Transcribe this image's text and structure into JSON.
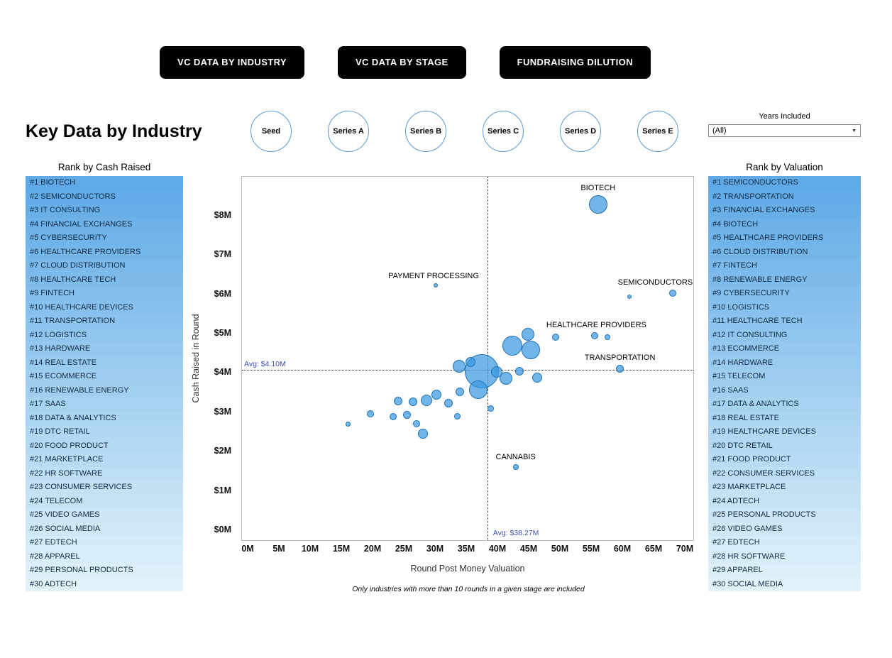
{
  "nav": {
    "buttons": [
      "VC DATA BY INDUSTRY",
      "VC DATA BY STAGE",
      "FUNDRAISING DILUTION"
    ]
  },
  "header": {
    "title": "Key Data by Industry",
    "stages": [
      "Seed",
      "Series A",
      "Series B",
      "Series C",
      "Series D",
      "Series E"
    ],
    "years_filter": {
      "label": "Years Included",
      "value": "(All)"
    }
  },
  "left_panel": {
    "title": "Rank by Cash Raised",
    "items": [
      "#1 BIOTECH",
      "#2 SEMICONDUCTORS",
      "#3 IT CONSULTING",
      "#4 FINANCIAL EXCHANGES",
      "#5 CYBERSECURITY",
      "#6 HEALTHCARE PROVIDERS",
      "#7 CLOUD DISTRIBUTION",
      "#8 HEALTHCARE TECH",
      "#9 FINTECH",
      "#10 HEALTHCARE DEVICES",
      "#11 TRANSPORTATION",
      "#12 LOGISTICS",
      "#13 HARDWARE",
      "#14 REAL ESTATE",
      "#15 ECOMMERCE",
      "#16 RENEWABLE ENERGY",
      "#17 SAAS",
      "#18 DATA & ANALYTICS",
      "#19 DTC RETAIL",
      "#20 FOOD PRODUCT",
      "#21 MARKETPLACE",
      "#22 HR SOFTWARE",
      "#23 CONSUMER SERVICES",
      "#24 TELECOM",
      "#25 VIDEO GAMES",
      "#26 SOCIAL MEDIA",
      "#27 EDTECH",
      "#28 APPAREL",
      "#29 PERSONAL PRODUCTS",
      "#30 ADTECH"
    ]
  },
  "right_panel": {
    "title": "Rank by Valuation",
    "items": [
      "#1 SEMICONDUCTORS",
      "#2 TRANSPORTATION",
      "#3 FINANCIAL EXCHANGES",
      "#4 BIOTECH",
      "#5 HEALTHCARE PROVIDERS",
      "#6 CLOUD DISTRIBUTION",
      "#7 FINTECH",
      "#8 RENEWABLE ENERGY",
      "#9 CYBERSECURITY",
      "#10 LOGISTICS",
      "#11 HEALTHCARE TECH",
      "#12 IT CONSULTING",
      "#13 ECOMMERCE",
      "#14 HARDWARE",
      "#15 TELECOM",
      "#16 SAAS",
      "#17 DATA & ANALYTICS",
      "#18 REAL ESTATE",
      "#19 HEALTHCARE DEVICES",
      "#20 DTC RETAIL",
      "#21 FOOD PRODUCT",
      "#22 CONSUMER SERVICES",
      "#23 MARKETPLACE",
      "#24 ADTECH",
      "#25 PERSONAL PRODUCTS",
      "#26 VIDEO GAMES",
      "#27 EDTECH",
      "#28 HR SOFTWARE",
      "#29 APPAREL",
      "#30 SOCIAL MEDIA"
    ]
  },
  "rank_palette": [
    "#5FAAE6",
    "#63ACE7",
    "#68AFE7",
    "#6CB1E8",
    "#71B4E9",
    "#75B6E9",
    "#7AB9EA",
    "#7EBBEB",
    "#83BEEC",
    "#87C0EC",
    "#8CC3ED",
    "#90C5EE",
    "#95C8EE",
    "#99CAEF",
    "#9ECDF0",
    "#A2CFF0",
    "#A7D2F1",
    "#ABD4F2",
    "#B0D7F3",
    "#B4D9F3",
    "#B9DCF4",
    "#BDDEF5",
    "#C2E1F5",
    "#C6E3F6",
    "#CBE6F7",
    "#CFE8F7",
    "#D4EBF8",
    "#D8EDF9",
    "#DDF0FA",
    "#E1F2FA"
  ],
  "chart_data": {
    "type": "scatter",
    "title": "",
    "xlabel": "Round Post Money Valuation",
    "ylabel": "Cash Raised in Round",
    "footnote": "Only industries with more than 10 rounds in a given stage are included",
    "units": "millions USD",
    "xlim": [
      0,
      71.5
    ],
    "ylim": [
      0,
      9
    ],
    "grid": false,
    "x_ticks": [
      {
        "value": 0,
        "label": "0M"
      },
      {
        "value": 5,
        "label": "5M"
      },
      {
        "value": 10,
        "label": "10M"
      },
      {
        "value": 15,
        "label": "15M"
      },
      {
        "value": 20,
        "label": "20M"
      },
      {
        "value": 25,
        "label": "25M"
      },
      {
        "value": 30,
        "label": "30M"
      },
      {
        "value": 35,
        "label": "35M"
      },
      {
        "value": 40,
        "label": "40M"
      },
      {
        "value": 45,
        "label": "45M"
      },
      {
        "value": 50,
        "label": "50M"
      },
      {
        "value": 55,
        "label": "55M"
      },
      {
        "value": 60,
        "label": "60M"
      },
      {
        "value": 65,
        "label": "65M"
      },
      {
        "value": 70,
        "label": "70M"
      }
    ],
    "y_ticks": [
      {
        "value": 0,
        "label": "$0M"
      },
      {
        "value": 1,
        "label": "$1M"
      },
      {
        "value": 2,
        "label": "$2M"
      },
      {
        "value": 3,
        "label": "$3M"
      },
      {
        "value": 4,
        "label": "$4M"
      },
      {
        "value": 5,
        "label": "$5M"
      },
      {
        "value": 6,
        "label": "$6M"
      },
      {
        "value": 7,
        "label": "$7M"
      },
      {
        "value": 8,
        "label": "$8M"
      }
    ],
    "avg_x": {
      "value": 38.27,
      "label": "Avg: $38.27M"
    },
    "avg_y": {
      "value": 4.1,
      "label": "Avg: $4.10M"
    },
    "bubble_fill": "rgba(59,153,224,0.72)",
    "bubble_stroke": "#1f72b8",
    "avg_label_color": "#3f51b5",
    "points": [
      {
        "label": "BIOTECH",
        "x": 56,
        "y": 8.3,
        "r": 13,
        "label_dx": 0
      },
      {
        "label": "PAYMENT PROCESSING",
        "x": 30,
        "y": 6.25,
        "r": 3,
        "label_dx": -3
      },
      {
        "label": "SEMICONDUCTORS",
        "x": 68,
        "y": 6.05,
        "r": 5,
        "label_dx": -25
      },
      {
        "x": 61,
        "y": 5.95,
        "r": 3
      },
      {
        "label": "HEALTHCARE PROVIDERS",
        "x": 55.5,
        "y": 4.97,
        "r": 5,
        "label_dx": 2
      },
      {
        "x": 57.5,
        "y": 4.93,
        "r": 4
      },
      {
        "label": "TRANSPORTATION",
        "x": 59.5,
        "y": 4.12,
        "r": 5.5,
        "label_dx": 0
      },
      {
        "label": "CANNABIS",
        "x": 42.8,
        "y": 1.63,
        "r": 4,
        "label_dx": 0
      },
      {
        "x": 37.4,
        "y": 4.07,
        "r": 24
      },
      {
        "x": 42.3,
        "y": 4.72,
        "r": 14
      },
      {
        "x": 45.2,
        "y": 4.6,
        "r": 13
      },
      {
        "x": 44.8,
        "y": 5.0,
        "r": 9
      },
      {
        "x": 49.2,
        "y": 4.93,
        "r": 5
      },
      {
        "x": 33.8,
        "y": 4.18,
        "r": 9
      },
      {
        "x": 35.6,
        "y": 4.3,
        "r": 7
      },
      {
        "x": 39.8,
        "y": 4.05,
        "r": 8
      },
      {
        "x": 41.3,
        "y": 3.88,
        "r": 9
      },
      {
        "x": 43.4,
        "y": 4.06,
        "r": 6
      },
      {
        "x": 46.3,
        "y": 3.9,
        "r": 7
      },
      {
        "x": 36.8,
        "y": 3.6,
        "r": 13
      },
      {
        "x": 33.9,
        "y": 3.53,
        "r": 6
      },
      {
        "x": 30.1,
        "y": 3.46,
        "r": 7
      },
      {
        "x": 28.5,
        "y": 3.32,
        "r": 8
      },
      {
        "x": 26.4,
        "y": 3.28,
        "r": 6
      },
      {
        "x": 24.0,
        "y": 3.3,
        "r": 6
      },
      {
        "x": 32.0,
        "y": 3.25,
        "r": 6
      },
      {
        "x": 33.5,
        "y": 2.92,
        "r": 4.5
      },
      {
        "x": 38.8,
        "y": 3.12,
        "r": 4.5
      },
      {
        "x": 19.6,
        "y": 2.98,
        "r": 5
      },
      {
        "x": 23.2,
        "y": 2.9,
        "r": 5
      },
      {
        "x": 25.4,
        "y": 2.95,
        "r": 5.5
      },
      {
        "x": 26.9,
        "y": 2.72,
        "r": 5
      },
      {
        "x": 27.9,
        "y": 2.48,
        "r": 7
      },
      {
        "x": 16.0,
        "y": 2.72,
        "r": 3.5
      }
    ]
  }
}
